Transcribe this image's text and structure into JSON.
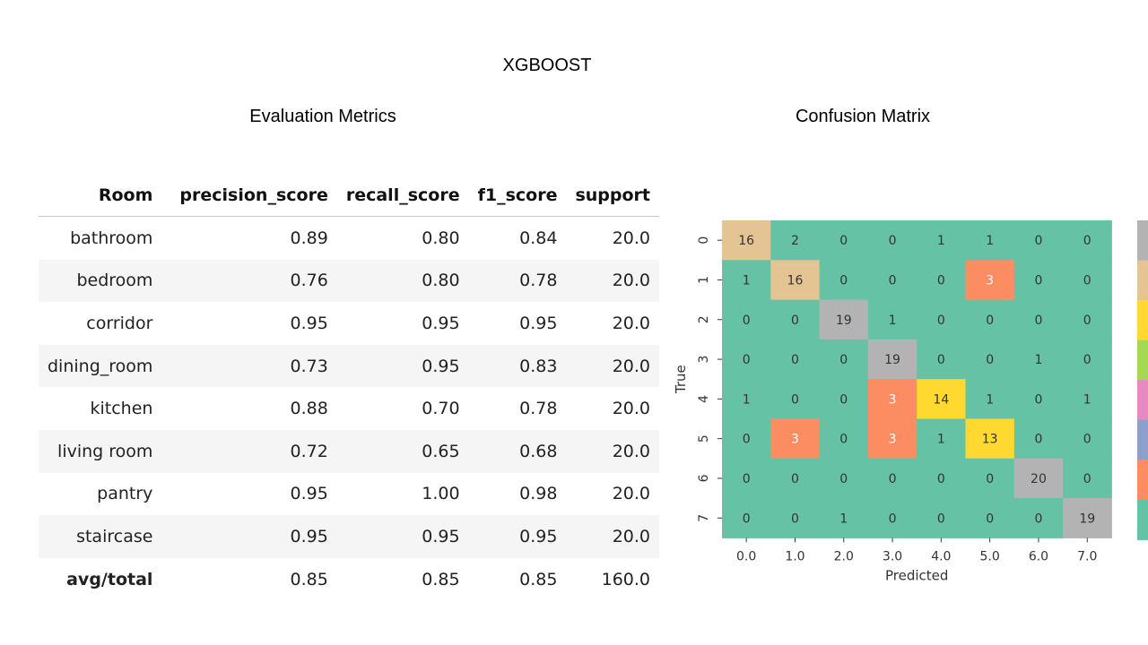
{
  "slide": {
    "title": "XGBOOST",
    "metrics_heading": "Evaluation Metrics",
    "matrix_heading": "Confusion Matrix"
  },
  "metrics_table": {
    "columns": [
      "Room",
      "precision_score",
      "recall_score",
      "f1_score",
      "support"
    ],
    "rows": [
      [
        "bathroom",
        "0.89",
        "0.80",
        "0.84",
        "20.0"
      ],
      [
        "bedroom",
        "0.76",
        "0.80",
        "0.78",
        "20.0"
      ],
      [
        "corridor",
        "0.95",
        "0.95",
        "0.95",
        "20.0"
      ],
      [
        "dining_room",
        "0.73",
        "0.95",
        "0.83",
        "20.0"
      ],
      [
        "kitchen",
        "0.88",
        "0.70",
        "0.78",
        "20.0"
      ],
      [
        "living room",
        "0.72",
        "0.65",
        "0.68",
        "20.0"
      ],
      [
        "pantry",
        "0.95",
        "1.00",
        "0.98",
        "20.0"
      ],
      [
        "staircase",
        "0.95",
        "0.95",
        "0.95",
        "20.0"
      ],
      [
        "avg/total",
        "0.85",
        "0.85",
        "0.85",
        "160.0"
      ]
    ]
  },
  "chart_data": {
    "type": "heatmap",
    "title": "Confusion Matrix",
    "xlabel": "Predicted",
    "ylabel": "True",
    "x_ticks": [
      "0.0",
      "1.0",
      "2.0",
      "3.0",
      "4.0",
      "5.0",
      "6.0",
      "7.0"
    ],
    "y_ticks": [
      "0",
      "1",
      "2",
      "3",
      "4",
      "5",
      "6",
      "7"
    ],
    "values": [
      [
        16,
        2,
        0,
        0,
        1,
        1,
        0,
        0
      ],
      [
        1,
        16,
        0,
        0,
        0,
        3,
        0,
        0
      ],
      [
        0,
        0,
        19,
        1,
        0,
        0,
        0,
        0
      ],
      [
        0,
        0,
        0,
        19,
        0,
        0,
        1,
        0
      ],
      [
        1,
        0,
        0,
        3,
        14,
        1,
        0,
        1
      ],
      [
        0,
        3,
        0,
        3,
        1,
        13,
        0,
        0
      ],
      [
        0,
        0,
        0,
        0,
        0,
        0,
        20,
        0
      ],
      [
        0,
        0,
        1,
        0,
        0,
        0,
        0,
        19
      ]
    ],
    "colormap": "Set2",
    "color_scale": [
      {
        "min": 19,
        "color": "#b3b3b3"
      },
      {
        "min": 16,
        "color": "#e5c494"
      },
      {
        "min": 13,
        "color": "#ffd92f"
      },
      {
        "min": 3,
        "color": "#fc8d62"
      },
      {
        "min": 0,
        "color": "#66c2a5"
      }
    ],
    "colorbar_colors": [
      "#b3b3b3",
      "#e5c494",
      "#ffd92f",
      "#a6d854",
      "#e78ac3",
      "#8da0cb",
      "#fc8d62",
      "#66c2a5"
    ],
    "text_color": "#333333",
    "text_color_dark_cells": "#ffffff"
  }
}
